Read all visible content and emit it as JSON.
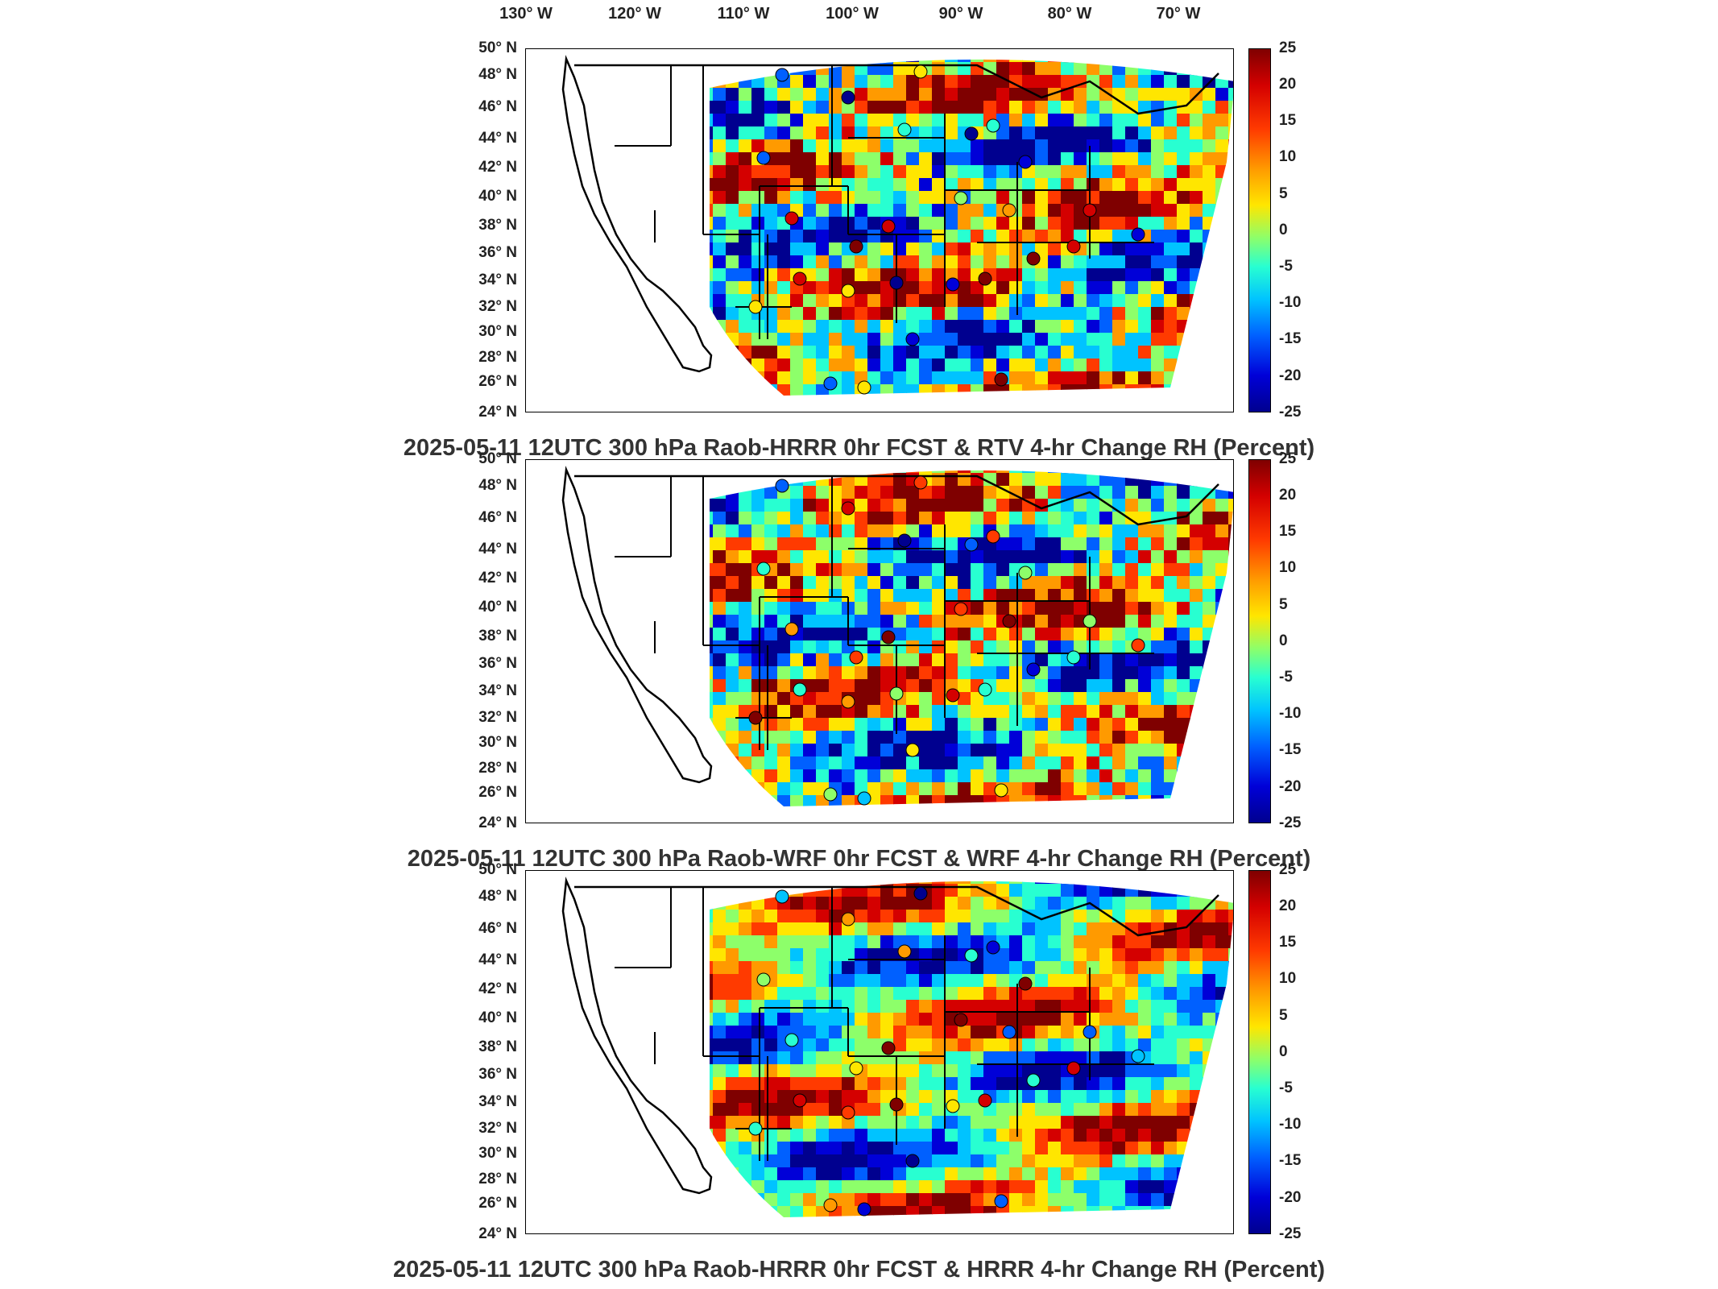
{
  "longitude_labels": [
    "130° W",
    "120° W",
    "110° W",
    "100° W",
    "90° W",
    "80° W",
    "70° W"
  ],
  "latitude_labels": [
    "50° N",
    "48° N",
    "46° N",
    "44° N",
    "42° N",
    "40° N",
    "38° N",
    "36° N",
    "34° N",
    "32° N",
    "30° N",
    "28° N",
    "26° N",
    "24° N"
  ],
  "colorbar_ticks": [
    "25",
    "20",
    "15",
    "10",
    "5",
    "0",
    "-5",
    "-10",
    "-15",
    "-20",
    "-25"
  ],
  "colorbar_range": [
    -25,
    25
  ],
  "colormap": [
    "#00008f",
    "#0000d8",
    "#0060ff",
    "#00c3ff",
    "#28ffd1",
    "#8dff6a",
    "#ffe600",
    "#ff9a00",
    "#ff3a00",
    "#d40000",
    "#7f0000"
  ],
  "panels": [
    {
      "title": "2025-05-11 12UTC 300 hPa Raob-HRRR 0hr FCST & RTV 4-hr Change RH (Percent)"
    },
    {
      "title": "2025-05-11 12UTC 300 hPa Raob-WRF 0hr FCST & WRF 4-hr Change RH (Percent)"
    },
    {
      "title": "2025-05-11 12UTC 300 hPa Raob-HRRR 0hr FCST & HRRR 4-hr Change RH (Percent)"
    }
  ]
}
